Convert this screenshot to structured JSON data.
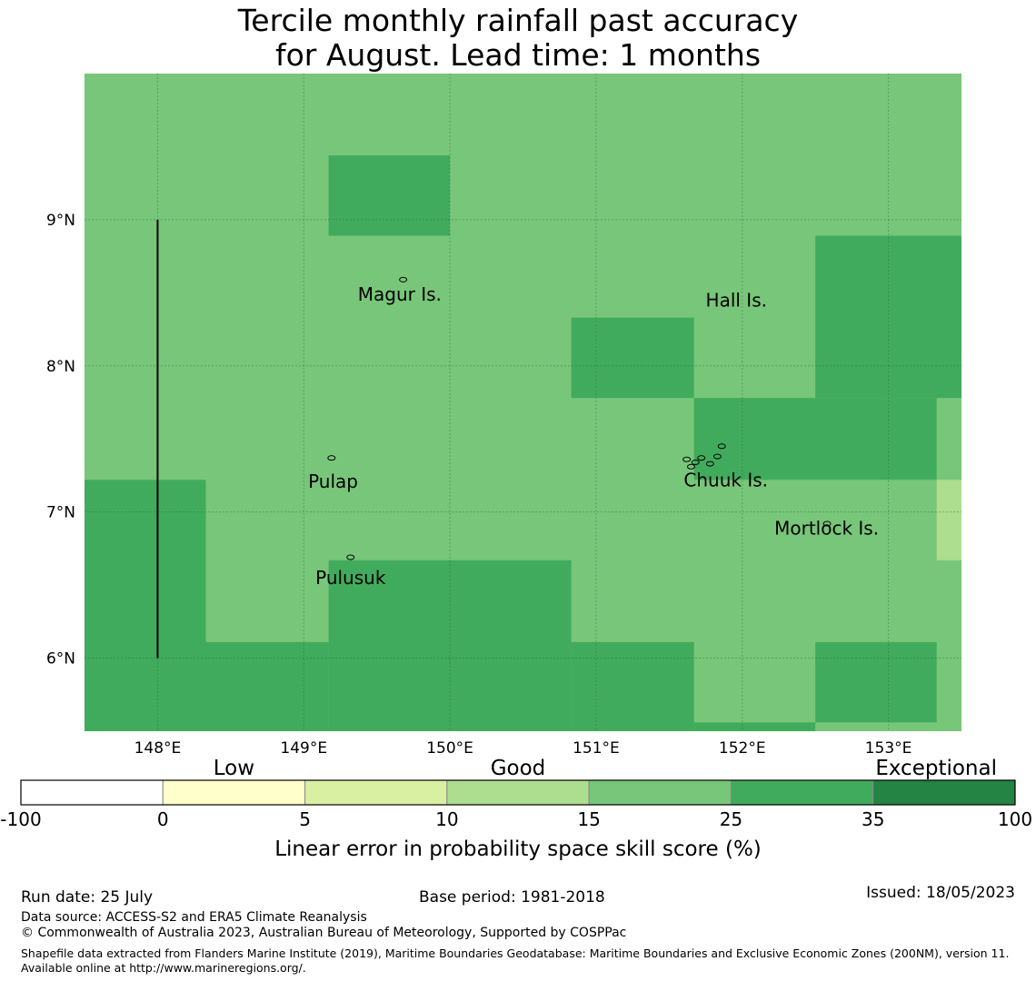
{
  "title_line1": "Tercile monthly rainfall past accuracy",
  "title_line2": "for August. Lead time: 1 months",
  "colors": {
    "white": "#ffffff",
    "c0": "#ffffcc",
    "c5": "#d9f0a3",
    "c10": "#addd8e",
    "c15": "#78c679",
    "c25": "#41ab5d",
    "c35": "#238443",
    "background": "#78c679"
  },
  "map": {
    "lon_range": [
      147.5,
      153.5
    ],
    "lat_range": [
      5.5,
      10.0
    ],
    "lon_ticks": [
      148,
      149,
      150,
      151,
      152,
      153
    ],
    "lon_tick_labels": [
      "148°E",
      "149°E",
      "150°E",
      "151°E",
      "152°E",
      "153°E"
    ],
    "lat_ticks": [
      6,
      7,
      8,
      9
    ],
    "lat_tick_labels": [
      "6°N",
      "7°N",
      "8°N",
      "9°N"
    ],
    "meridian_148_line": {
      "lon": 148,
      "lat_from": 6,
      "lat_to": 9
    },
    "cells": [
      {
        "lon": [
          149.17,
          150.0
        ],
        "lat": [
          8.89,
          9.44
        ],
        "color": "c25"
      },
      {
        "lon": [
          150.83,
          151.67
        ],
        "lat": [
          7.78,
          8.33
        ],
        "color": "c25"
      },
      {
        "lon": [
          152.5,
          153.5
        ],
        "lat": [
          7.78,
          8.89
        ],
        "color": "c25"
      },
      {
        "lon": [
          151.67,
          153.33
        ],
        "lat": [
          7.22,
          7.78
        ],
        "color": "c25"
      },
      {
        "lon": [
          153.33,
          153.5
        ],
        "lat": [
          6.67,
          7.22
        ],
        "color": "c10"
      },
      {
        "lon": [
          147.5,
          148.33
        ],
        "lat": [
          5.5,
          7.22
        ],
        "color": "c25"
      },
      {
        "lon": [
          148.33,
          149.17
        ],
        "lat": [
          5.5,
          6.11
        ],
        "color": "c25"
      },
      {
        "lon": [
          149.17,
          150.83
        ],
        "lat": [
          5.5,
          6.67
        ],
        "color": "c25"
      },
      {
        "lon": [
          150.83,
          151.67
        ],
        "lat": [
          5.5,
          6.11
        ],
        "color": "c25"
      },
      {
        "lon": [
          151.67,
          152.5
        ],
        "lat": [
          5.5,
          5.56
        ],
        "color": "c25"
      },
      {
        "lon": [
          152.5,
          153.33
        ],
        "lat": [
          5.56,
          6.11
        ],
        "color": "c25"
      }
    ],
    "places": [
      {
        "name": "Magur Is.",
        "lon": 149.37,
        "lat": 8.49
      },
      {
        "name": "Hall Is.",
        "lon": 151.75,
        "lat": 8.45
      },
      {
        "name": "Pulap",
        "lon": 149.03,
        "lat": 7.21
      },
      {
        "name": "Chuuk Is.",
        "lon": 151.6,
        "lat": 7.22
      },
      {
        "name": "Mortlock Is.",
        "lon": 152.22,
        "lat": 6.89
      },
      {
        "name": "Pulusuk",
        "lon": 149.08,
        "lat": 6.55
      }
    ],
    "islands": [
      {
        "lon": 149.68,
        "lat": 8.59
      },
      {
        "lon": 149.19,
        "lat": 7.37
      },
      {
        "lon": 149.32,
        "lat": 6.69
      },
      {
        "lon": 151.86,
        "lat": 7.45
      },
      {
        "lon": 151.83,
        "lat": 7.38
      },
      {
        "lon": 151.62,
        "lat": 7.36
      },
      {
        "lon": 151.68,
        "lat": 7.34
      },
      {
        "lon": 151.72,
        "lat": 7.37
      },
      {
        "lon": 151.78,
        "lat": 7.33
      },
      {
        "lon": 151.65,
        "lat": 7.31
      },
      {
        "lon": 152.58,
        "lat": 6.92
      }
    ]
  },
  "colorbar": {
    "boundaries": [
      -100,
      0,
      5,
      10,
      15,
      25,
      35,
      100
    ],
    "tick_labels": [
      "-100",
      "0",
      "5",
      "10",
      "15",
      "25",
      "35",
      "100"
    ],
    "segment_colors": [
      "white",
      "c0",
      "c5",
      "c10",
      "c15",
      "c25",
      "c35"
    ],
    "category_labels": [
      "Low",
      "Good",
      "Exceptional"
    ],
    "label": "Linear error in probability space skill score (%)"
  },
  "footer": {
    "run_date": "Run date: 25 July",
    "base_period": "Base period: 1981-2018",
    "issued": "Issued: 18/05/2023",
    "data_source": "Data source: ACCESS-S2 and ERA5 Climate Reanalysis",
    "copyright": "© Commonwealth of Australia 2023, Australian Bureau of Meteorology, Supported by COSPPac",
    "shapefile": "Shapefile data extracted from Flanders Marine Institute (2019), Maritime Boundaries Geodatabase: Maritime Boundaries and Exclusive Economic Zones (200NM), version 11. Available online at http://www.marineregions.org/."
  }
}
